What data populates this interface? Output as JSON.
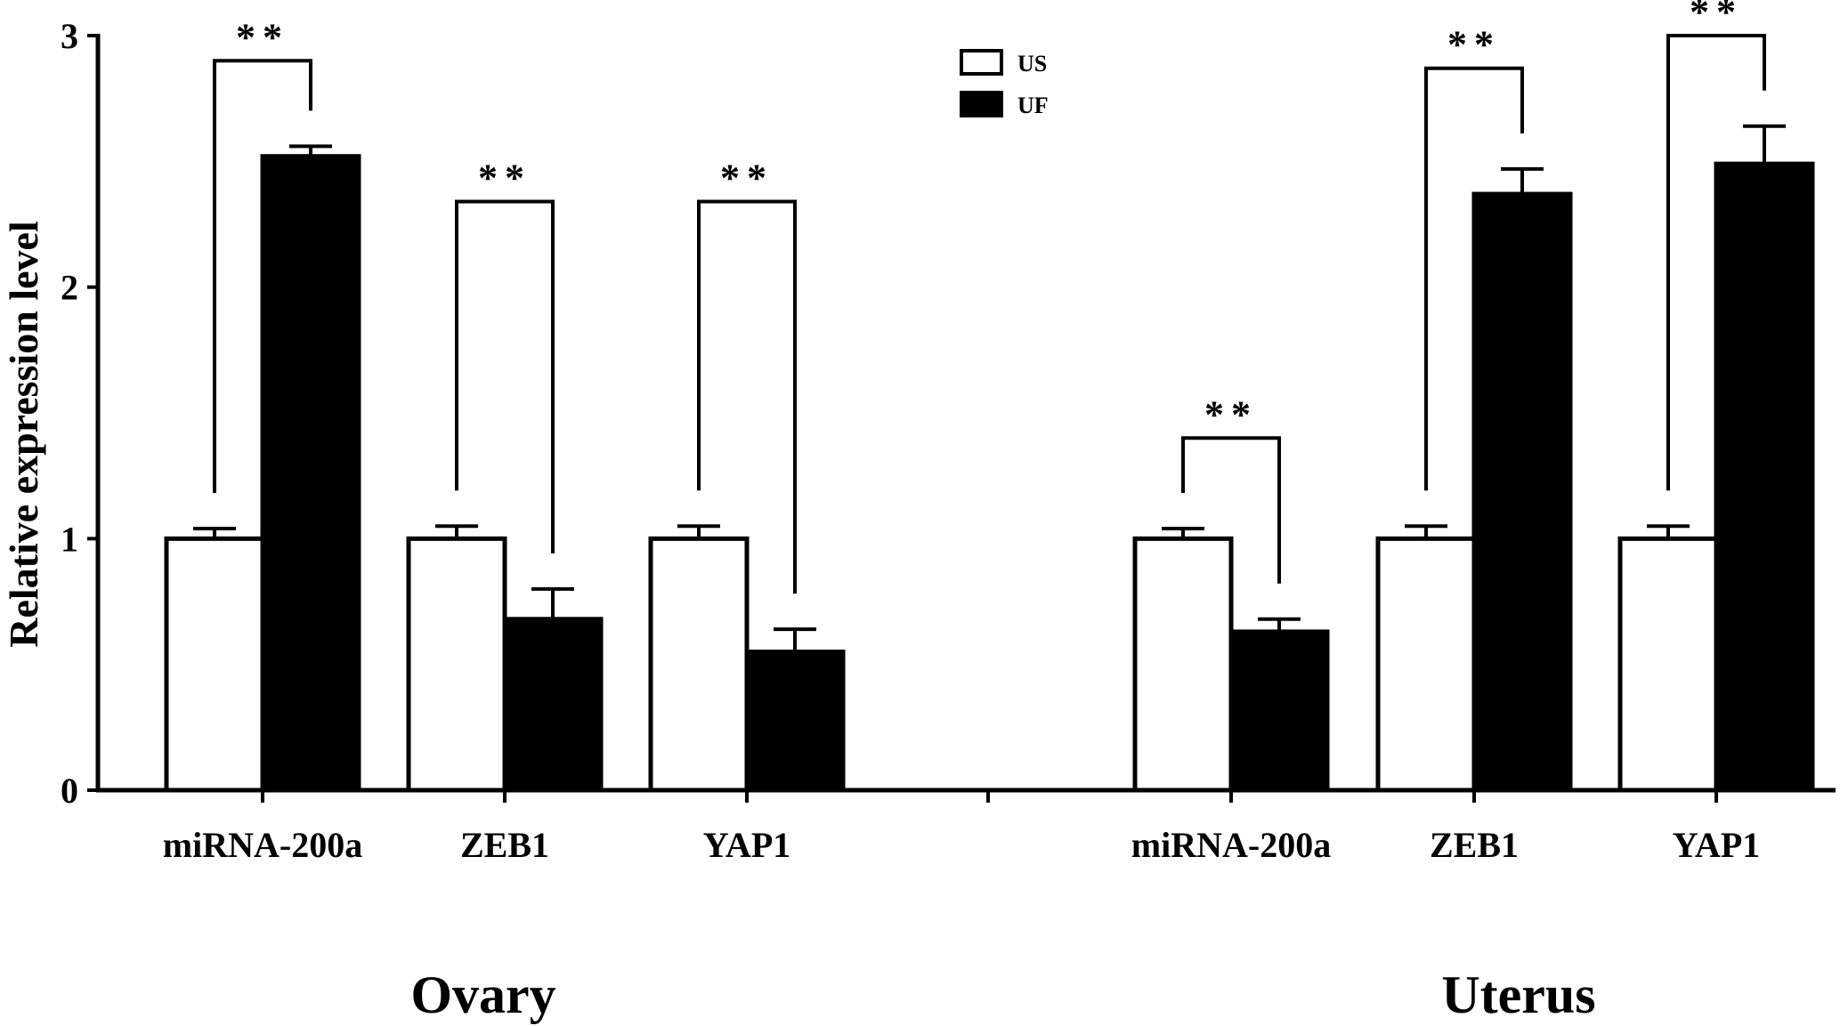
{
  "chart_data": {
    "type": "bar",
    "ylabel": "Relative expression level",
    "xlabel": "",
    "ylim": [
      0,
      3
    ],
    "yticks": [
      "0",
      "1",
      "2",
      "3"
    ],
    "grid": false,
    "legend_position": "top-center",
    "groups": [
      {
        "name": "Ovary",
        "categories": [
          "miRNA-200a",
          "ZEB1",
          "YAP1"
        ]
      },
      {
        "name": "Uterus",
        "categories": [
          "miRNA-200a",
          "ZEB1",
          "YAP1"
        ]
      }
    ],
    "series": [
      {
        "name": "US",
        "color": "#ffffff",
        "values": [
          1.0,
          1.0,
          1.0,
          1.0,
          1.0,
          1.0
        ],
        "errors": [
          0.04,
          0.05,
          0.05,
          0.04,
          0.05,
          0.05
        ]
      },
      {
        "name": "UF",
        "color": "#000000",
        "values": [
          2.52,
          0.68,
          0.55,
          0.63,
          2.37,
          2.49
        ],
        "errors": [
          0.04,
          0.12,
          0.09,
          0.05,
          0.1,
          0.15
        ]
      }
    ],
    "significance": [
      {
        "label": "**",
        "bracket_top": 2.9
      },
      {
        "label": "**",
        "bracket_top": 2.34
      },
      {
        "label": "**",
        "bracket_top": 2.34
      },
      {
        "label": "**",
        "bracket_top": 1.4
      },
      {
        "label": "**",
        "bracket_top": 2.87
      },
      {
        "label": "**",
        "bracket_top": 3.0
      }
    ]
  }
}
